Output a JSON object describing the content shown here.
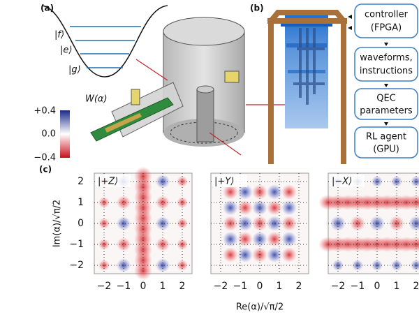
{
  "panel_labels": {
    "a": "(a)",
    "b": "(b)",
    "c": "(c)"
  },
  "energy_levels": [
    "|f⟩",
    "|e⟩",
    "|g⟩"
  ],
  "colorbar": {
    "label": "W(α)",
    "ticks": [
      "+0.4",
      "0.0",
      "−0.4"
    ]
  },
  "flowchart": [
    [
      "controller",
      "(FPGA)"
    ],
    [
      "waveforms,",
      "instructions"
    ],
    [
      "QEC",
      "parameters"
    ],
    [
      "RL agent",
      "(GPU)"
    ]
  ],
  "wigner": {
    "plots": [
      {
        "title": "|+Z⟩"
      },
      {
        "title": "|+Y⟩"
      },
      {
        "title": "|−X⟩"
      }
    ],
    "xticks": [
      "−2",
      "−1",
      "0",
      "1",
      "2"
    ],
    "yticks": [
      "2",
      "1",
      "0",
      "−1",
      "−2"
    ],
    "xlabel": "Re(α)/√π/2",
    "ylabel": "Im(α)/√π/2"
  }
}
